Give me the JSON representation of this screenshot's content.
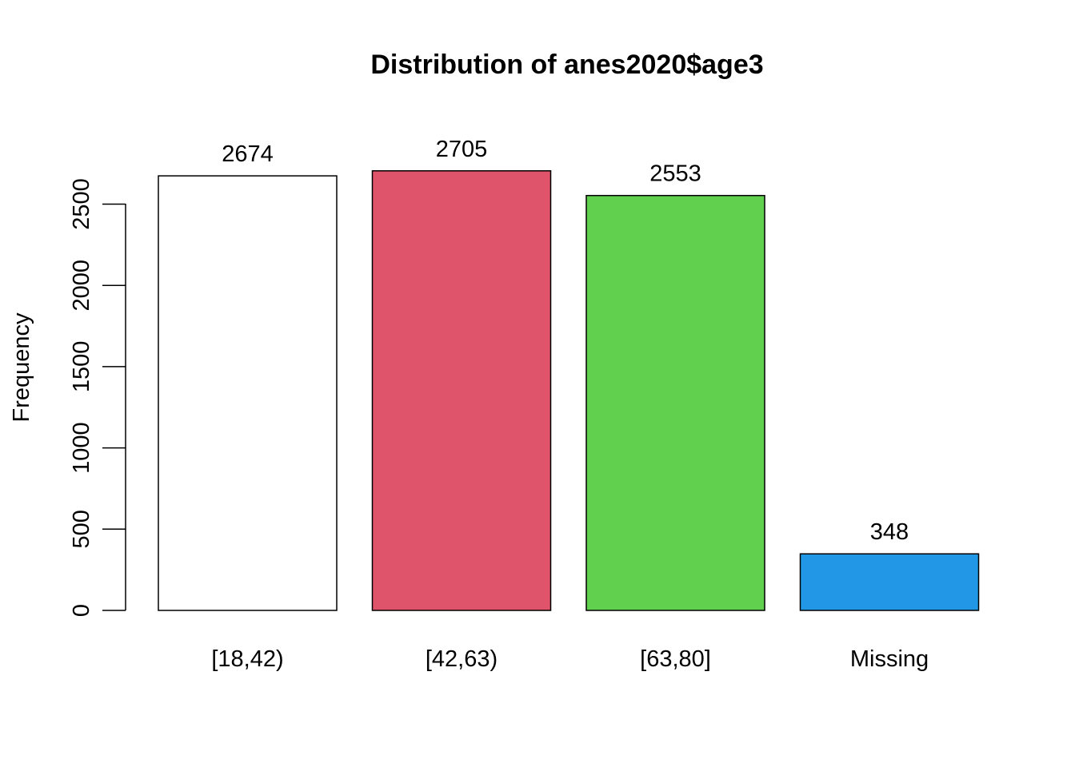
{
  "chart_data": {
    "type": "bar",
    "title": "Distribution of anes2020$age3",
    "xlabel": "",
    "ylabel": "Frequency",
    "categories": [
      "[18,42)",
      "[42,63)",
      "[63,80]",
      "Missing"
    ],
    "values": [
      2674,
      2705,
      2553,
      348
    ],
    "value_labels": [
      "2674",
      "2705",
      "2553",
      "348"
    ],
    "colors": [
      "#ffffff",
      "#DF536B",
      "#61D04F",
      "#2297E6"
    ],
    "y_ticks": [
      0,
      500,
      1000,
      1500,
      2000,
      2500
    ],
    "ylim": [
      0,
      2705
    ],
    "grid": false,
    "legend": "none"
  }
}
